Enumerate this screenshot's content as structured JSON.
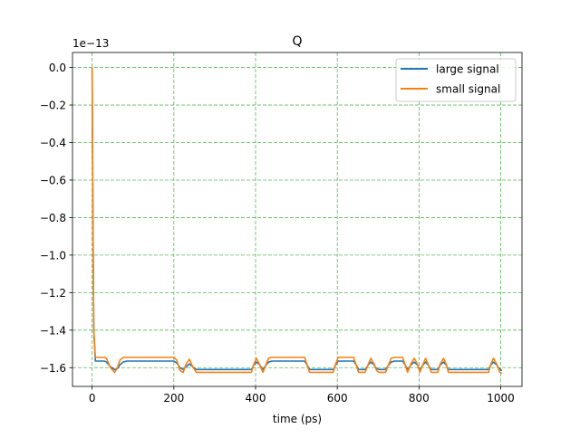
{
  "chart_data": {
    "type": "line",
    "title": "Q",
    "xlabel": "time (ps)",
    "ylabel": "",
    "y_offset_label": "1e−13",
    "xlim": [
      -48,
      1052
    ],
    "ylim": [
      -1.7,
      0.08
    ],
    "xticks": [
      0,
      200,
      400,
      600,
      800,
      1000
    ],
    "xtick_labels": [
      "0",
      "200",
      "400",
      "600",
      "800",
      "1000"
    ],
    "yticks": [
      0.0,
      -0.2,
      -0.4,
      -0.6,
      -0.8,
      -1.0,
      -1.2,
      -1.4,
      -1.6
    ],
    "ytick_labels": [
      "0.0",
      "−0.2",
      "−0.4",
      "−0.6",
      "−0.8",
      "−1.0",
      "−1.2",
      "−1.4",
      "−1.6"
    ],
    "grid": true,
    "grid_style": "dashed",
    "grid_color": "#5cb85c",
    "legend_position": "top-right",
    "series": [
      {
        "name": "large signal",
        "color": "#1f77b4",
        "x": [
          0,
          2,
          4,
          8,
          30,
          35,
          45,
          55,
          62,
          68,
          76,
          85,
          200,
          207,
          215,
          223,
          230,
          238,
          246,
          255,
          262,
          390,
          396,
          402,
          410,
          418,
          426,
          432,
          440,
          520,
          526,
          532,
          540,
          548,
          556,
          562,
          570,
          590,
          596,
          602,
          640,
          646,
          652,
          660,
          668,
          676,
          682,
          690,
          696,
          702,
          710,
          718,
          726,
          732,
          740,
          760,
          766,
          772,
          780,
          788,
          796,
          802,
          810,
          816,
          822,
          830,
          838,
          846,
          852,
          860,
          866,
          872,
          880,
          888,
          896,
          902,
          910,
          970,
          976,
          982,
          990,
          998,
          1003
        ],
        "y": [
          0.0,
          -0.8,
          -1.4,
          -1.565,
          -1.565,
          -1.57,
          -1.595,
          -1.61,
          -1.605,
          -1.585,
          -1.57,
          -1.565,
          -1.565,
          -1.575,
          -1.6,
          -1.61,
          -1.595,
          -1.58,
          -1.595,
          -1.61,
          -1.61,
          -1.61,
          -1.585,
          -1.57,
          -1.585,
          -1.61,
          -1.585,
          -1.57,
          -1.565,
          -1.565,
          -1.585,
          -1.61,
          -1.61,
          -1.61,
          -1.61,
          -1.61,
          -1.61,
          -1.61,
          -1.585,
          -1.565,
          -1.565,
          -1.585,
          -1.61,
          -1.61,
          -1.61,
          -1.585,
          -1.57,
          -1.585,
          -1.605,
          -1.61,
          -1.61,
          -1.61,
          -1.585,
          -1.57,
          -1.565,
          -1.565,
          -1.585,
          -1.61,
          -1.585,
          -1.57,
          -1.585,
          -1.61,
          -1.585,
          -1.57,
          -1.585,
          -1.61,
          -1.61,
          -1.61,
          -1.585,
          -1.57,
          -1.585,
          -1.61,
          -1.61,
          -1.61,
          -1.61,
          -1.61,
          -1.61,
          -1.61,
          -1.585,
          -1.57,
          -1.585,
          -1.61,
          -1.615
        ]
      },
      {
        "name": "small signal",
        "color": "#ff7f0e",
        "x": [
          0,
          2,
          4,
          8,
          30,
          35,
          45,
          55,
          62,
          68,
          76,
          85,
          200,
          207,
          215,
          223,
          230,
          238,
          246,
          255,
          262,
          390,
          396,
          402,
          410,
          418,
          426,
          432,
          440,
          520,
          526,
          532,
          540,
          548,
          556,
          562,
          570,
          590,
          596,
          602,
          640,
          646,
          652,
          660,
          668,
          676,
          682,
          690,
          696,
          702,
          710,
          718,
          726,
          732,
          740,
          760,
          766,
          772,
          780,
          788,
          796,
          802,
          810,
          816,
          822,
          830,
          838,
          846,
          852,
          860,
          866,
          872,
          880,
          888,
          896,
          902,
          910,
          970,
          976,
          982,
          990,
          998,
          1003
        ],
        "y": [
          0.0,
          -0.8,
          -1.4,
          -1.545,
          -1.545,
          -1.55,
          -1.6,
          -1.625,
          -1.6,
          -1.56,
          -1.545,
          -1.545,
          -1.545,
          -1.56,
          -1.615,
          -1.625,
          -1.58,
          -1.555,
          -1.595,
          -1.625,
          -1.625,
          -1.625,
          -1.58,
          -1.55,
          -1.585,
          -1.625,
          -1.58,
          -1.55,
          -1.545,
          -1.545,
          -1.585,
          -1.625,
          -1.625,
          -1.625,
          -1.625,
          -1.625,
          -1.625,
          -1.625,
          -1.58,
          -1.545,
          -1.545,
          -1.585,
          -1.625,
          -1.625,
          -1.625,
          -1.58,
          -1.55,
          -1.58,
          -1.615,
          -1.625,
          -1.625,
          -1.625,
          -1.58,
          -1.55,
          -1.545,
          -1.545,
          -1.585,
          -1.625,
          -1.58,
          -1.55,
          -1.58,
          -1.625,
          -1.58,
          -1.55,
          -1.58,
          -1.625,
          -1.625,
          -1.625,
          -1.58,
          -1.55,
          -1.58,
          -1.625,
          -1.625,
          -1.625,
          -1.625,
          -1.625,
          -1.625,
          -1.625,
          -1.58,
          -1.55,
          -1.58,
          -1.625,
          -1.63
        ]
      }
    ]
  }
}
